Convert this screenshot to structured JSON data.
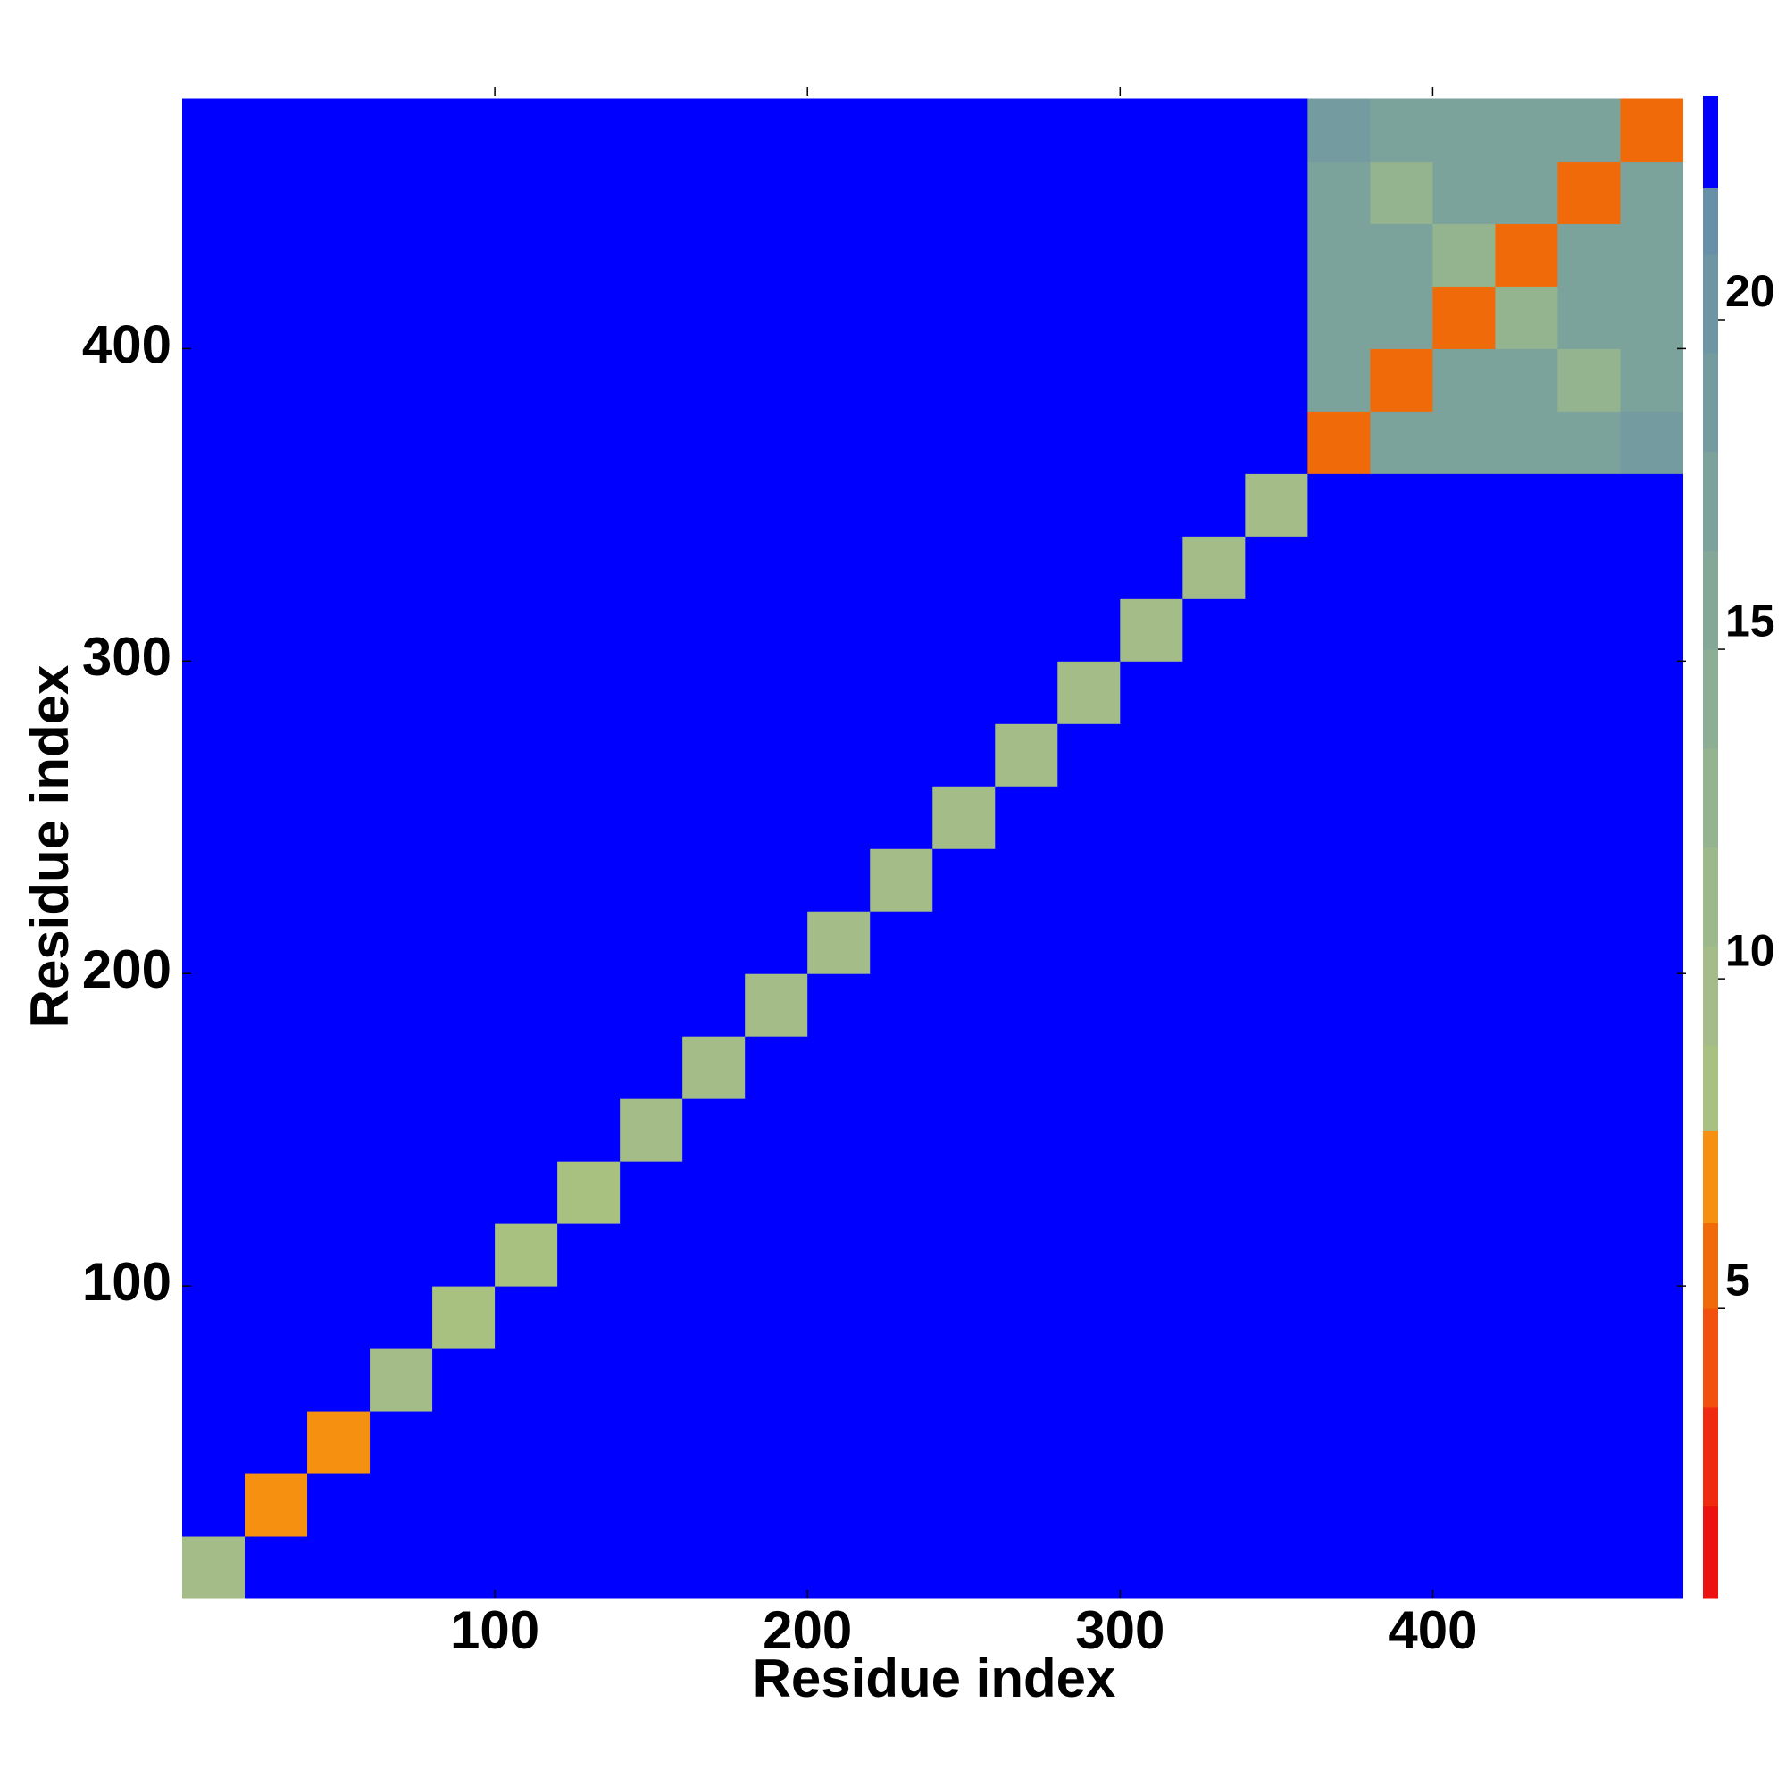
{
  "chart_data": {
    "type": "heatmap",
    "xlabel": "Residue index",
    "ylabel": "Residue index",
    "xlim": [
      0,
      481
    ],
    "ylim": [
      0,
      481
    ],
    "xticks": [
      100,
      200,
      300,
      400
    ],
    "yticks": [
      100,
      200,
      300,
      400
    ],
    "xbins": [
      0,
      20,
      40,
      60,
      80,
      100,
      120,
      140,
      160,
      180,
      200,
      220,
      240,
      260,
      280,
      300,
      320,
      340,
      360,
      380,
      400,
      420,
      440,
      460,
      480
    ],
    "ybins": [
      0,
      20,
      40,
      60,
      80,
      100,
      120,
      140,
      160,
      180,
      200,
      220,
      240,
      260,
      280,
      300,
      320,
      340,
      360,
      380,
      400,
      420,
      440,
      460,
      480
    ],
    "values": [
      [
        9,
        23,
        23,
        23,
        23,
        23,
        23,
        23,
        23,
        23,
        23,
        23,
        23,
        23,
        23,
        23,
        23,
        23,
        23,
        23,
        23,
        23,
        23,
        23
      ],
      [
        23,
        7,
        23,
        23,
        23,
        23,
        23,
        23,
        23,
        23,
        23,
        23,
        23,
        23,
        23,
        23,
        23,
        23,
        23,
        23,
        23,
        23,
        23,
        23
      ],
      [
        23,
        23,
        7,
        23,
        23,
        23,
        23,
        23,
        23,
        23,
        23,
        23,
        23,
        23,
        23,
        23,
        23,
        23,
        23,
        23,
        23,
        23,
        23,
        23
      ],
      [
        23,
        23,
        23,
        9,
        23,
        23,
        23,
        23,
        23,
        23,
        23,
        23,
        23,
        23,
        23,
        23,
        23,
        23,
        23,
        23,
        23,
        23,
        23,
        23
      ],
      [
        23,
        23,
        23,
        23,
        8,
        23,
        23,
        23,
        23,
        23,
        23,
        23,
        23,
        23,
        23,
        23,
        23,
        23,
        23,
        23,
        23,
        23,
        23,
        23
      ],
      [
        23,
        23,
        23,
        23,
        23,
        8,
        23,
        23,
        23,
        23,
        23,
        23,
        23,
        23,
        23,
        23,
        23,
        23,
        23,
        23,
        23,
        23,
        23,
        23
      ],
      [
        23,
        23,
        23,
        23,
        23,
        23,
        8,
        23,
        23,
        23,
        23,
        23,
        23,
        23,
        23,
        23,
        23,
        23,
        23,
        23,
        23,
        23,
        23,
        23
      ],
      [
        23,
        23,
        23,
        23,
        23,
        23,
        23,
        9,
        23,
        23,
        23,
        23,
        23,
        23,
        23,
        23,
        23,
        23,
        23,
        23,
        23,
        23,
        23,
        23
      ],
      [
        23,
        23,
        23,
        23,
        23,
        23,
        23,
        23,
        9,
        23,
        23,
        23,
        23,
        23,
        23,
        23,
        23,
        23,
        23,
        23,
        23,
        23,
        23,
        23
      ],
      [
        23,
        23,
        23,
        23,
        23,
        23,
        23,
        23,
        23,
        9,
        23,
        23,
        23,
        23,
        23,
        23,
        23,
        23,
        23,
        23,
        23,
        23,
        23,
        23
      ],
      [
        23,
        23,
        23,
        23,
        23,
        23,
        23,
        23,
        23,
        23,
        9,
        23,
        23,
        23,
        23,
        23,
        23,
        23,
        23,
        23,
        23,
        23,
        23,
        23
      ],
      [
        23,
        23,
        23,
        23,
        23,
        23,
        23,
        23,
        23,
        23,
        23,
        9,
        23,
        23,
        23,
        23,
        23,
        23,
        23,
        23,
        23,
        23,
        23,
        23
      ],
      [
        23,
        23,
        23,
        23,
        23,
        23,
        23,
        23,
        23,
        23,
        23,
        23,
        9,
        23,
        23,
        23,
        23,
        23,
        23,
        23,
        23,
        23,
        23,
        23
      ],
      [
        23,
        23,
        23,
        23,
        23,
        23,
        23,
        23,
        23,
        23,
        23,
        23,
        23,
        9,
        23,
        23,
        23,
        23,
        23,
        23,
        23,
        23,
        23,
        23
      ],
      [
        23,
        23,
        23,
        23,
        23,
        23,
        23,
        23,
        23,
        23,
        23,
        23,
        23,
        23,
        9,
        23,
        23,
        23,
        23,
        23,
        23,
        23,
        23,
        23
      ],
      [
        23,
        23,
        23,
        23,
        23,
        23,
        23,
        23,
        23,
        23,
        23,
        23,
        23,
        23,
        23,
        9,
        23,
        23,
        23,
        23,
        23,
        23,
        23,
        23
      ],
      [
        23,
        23,
        23,
        23,
        23,
        23,
        23,
        23,
        23,
        23,
        23,
        23,
        23,
        23,
        23,
        23,
        9,
        23,
        23,
        23,
        23,
        23,
        23,
        23
      ],
      [
        23,
        23,
        23,
        23,
        23,
        23,
        23,
        23,
        23,
        23,
        23,
        23,
        23,
        23,
        23,
        23,
        23,
        9,
        23,
        23,
        23,
        23,
        23,
        23
      ],
      [
        23,
        23,
        23,
        23,
        23,
        23,
        23,
        23,
        23,
        23,
        23,
        23,
        23,
        23,
        23,
        23,
        23,
        23,
        6,
        17,
        17,
        17,
        17,
        19
      ],
      [
        23,
        23,
        23,
        23,
        23,
        23,
        23,
        23,
        23,
        23,
        23,
        23,
        23,
        23,
        23,
        23,
        23,
        23,
        17,
        6,
        17,
        17,
        13,
        17
      ],
      [
        23,
        23,
        23,
        23,
        23,
        23,
        23,
        23,
        23,
        23,
        23,
        23,
        23,
        23,
        23,
        23,
        23,
        23,
        17,
        17,
        6,
        13,
        17,
        17
      ],
      [
        23,
        23,
        23,
        23,
        23,
        23,
        23,
        23,
        23,
        23,
        23,
        23,
        23,
        23,
        23,
        23,
        23,
        23,
        17,
        17,
        13,
        6,
        17,
        17
      ],
      [
        23,
        23,
        23,
        23,
        23,
        23,
        23,
        23,
        23,
        23,
        23,
        23,
        23,
        23,
        23,
        23,
        23,
        23,
        17,
        13,
        17,
        17,
        6,
        17
      ],
      [
        23,
        23,
        23,
        23,
        23,
        23,
        23,
        23,
        23,
        23,
        23,
        23,
        23,
        23,
        23,
        23,
        23,
        23,
        19,
        17,
        17,
        17,
        17,
        6
      ]
    ],
    "colorbar": {
      "lim": [
        0.6,
        23.4
      ],
      "ticks": [
        5,
        10,
        15,
        20
      ],
      "levels": [
        0.6,
        2,
        3.5,
        5,
        6.3,
        7.7,
        9,
        10.5,
        12,
        13.5,
        15,
        16.5,
        18,
        19.5,
        21,
        22,
        23.4
      ],
      "colors": [
        "#ee1111",
        "#f02a10",
        "#f2500e",
        "#f06a0a",
        "#f59010",
        "#a8c080",
        "#a4bd88",
        "#9cb98c",
        "#94b490",
        "#8caf94",
        "#84a898",
        "#7ca29c",
        "#749ca0",
        "#6c96a4",
        "#6690a8",
        "#0000ff"
      ]
    }
  }
}
